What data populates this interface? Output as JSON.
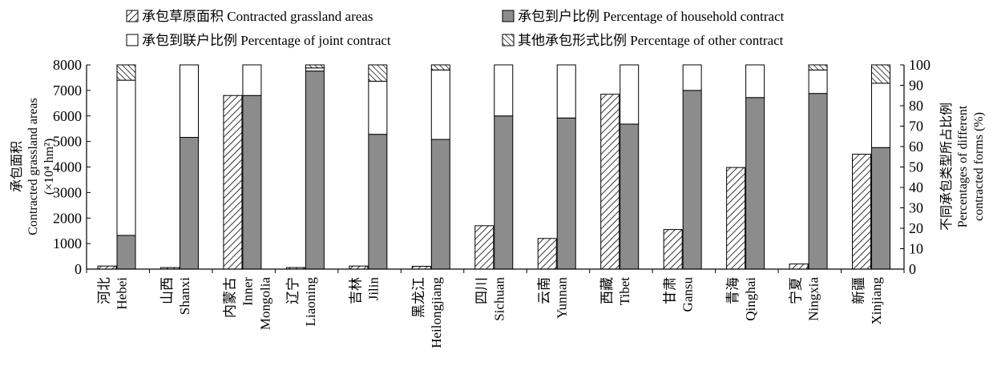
{
  "chart_data": {
    "type": "bar",
    "categories": [
      {
        "zh": "河北",
        "en": "Hebei"
      },
      {
        "zh": "山西",
        "en": "Shanxi"
      },
      {
        "zh": "内蒙古",
        "en": "Inner Mongolia"
      },
      {
        "zh": "辽宁",
        "en": "Liaoning"
      },
      {
        "zh": "吉林",
        "en": "Jilin"
      },
      {
        "zh": "黑龙江",
        "en": "Heilongjiang"
      },
      {
        "zh": "四川",
        "en": "Sichuan"
      },
      {
        "zh": "云南",
        "en": "Yunnan"
      },
      {
        "zh": "西藏",
        "en": "Tibet"
      },
      {
        "zh": "甘肃",
        "en": "Gansu"
      },
      {
        "zh": "青海",
        "en": "Qinghai"
      },
      {
        "zh": "宁夏",
        "en": "Ningxia"
      },
      {
        "zh": "新疆",
        "en": "Xinjiang"
      }
    ],
    "series": [
      {
        "name": "承包草原面积 Contracted grassland areas",
        "axis": "left",
        "pattern": "hatch",
        "values": [
          120,
          60,
          6800,
          60,
          120,
          110,
          1700,
          1200,
          6850,
          1550,
          3980,
          200,
          4500
        ]
      },
      {
        "name": "承包到户比例 Percentage of household contract",
        "axis": "right",
        "stack": "percent",
        "color": "#8c8c8c",
        "values": [
          16.5,
          64.5,
          85,
          97,
          66,
          63.5,
          75,
          74,
          71,
          87.5,
          84,
          86,
          59.5
        ]
      },
      {
        "name": "承包到联户比例 Percentage of joint contract",
        "axis": "right",
        "stack": "percent",
        "color": "#ffffff",
        "values": [
          76,
          35.5,
          15,
          1.5,
          26,
          34,
          25,
          26,
          29,
          12.5,
          16,
          11.5,
          31.5
        ]
      },
      {
        "name": "其他承包形式比例 Percentage of other contract",
        "axis": "right",
        "stack": "percent",
        "pattern": "crosshatch",
        "values": [
          7.5,
          0,
          0,
          1.5,
          8,
          2.5,
          0,
          0,
          0,
          0,
          0,
          2.5,
          9
        ]
      }
    ],
    "ylabel_left": [
      "承包面积",
      "Contracted grassland areas",
      "(×10⁴ hm²)"
    ],
    "ylabel_right": [
      "不同承包类型所占比例",
      "Percentages of different",
      "contracted forms (%)"
    ],
    "ylim_left": [
      0,
      8000
    ],
    "yticks_left": [
      "0",
      "1000",
      "2000",
      "3000",
      "4000",
      "5000",
      "6000",
      "7000",
      "8000"
    ],
    "ylim_right": [
      0,
      100
    ],
    "yticks_right": [
      "0",
      "10",
      "20",
      "30",
      "40",
      "50",
      "60",
      "70",
      "80",
      "90",
      "100"
    ],
    "legend": {
      "placement": "top",
      "items": [
        {
          "label": "承包草原面积 Contracted grassland areas",
          "pattern": "hatch"
        },
        {
          "label": "承包到户比例 Percentage of household contract",
          "color": "#8c8c8c"
        },
        {
          "label": "承包到联户比例 Percentage of joint contract",
          "color": "#ffffff"
        },
        {
          "label": "其他承包形式比例 Percentage of other contract",
          "pattern": "crosshatch"
        }
      ]
    },
    "grid": false
  }
}
